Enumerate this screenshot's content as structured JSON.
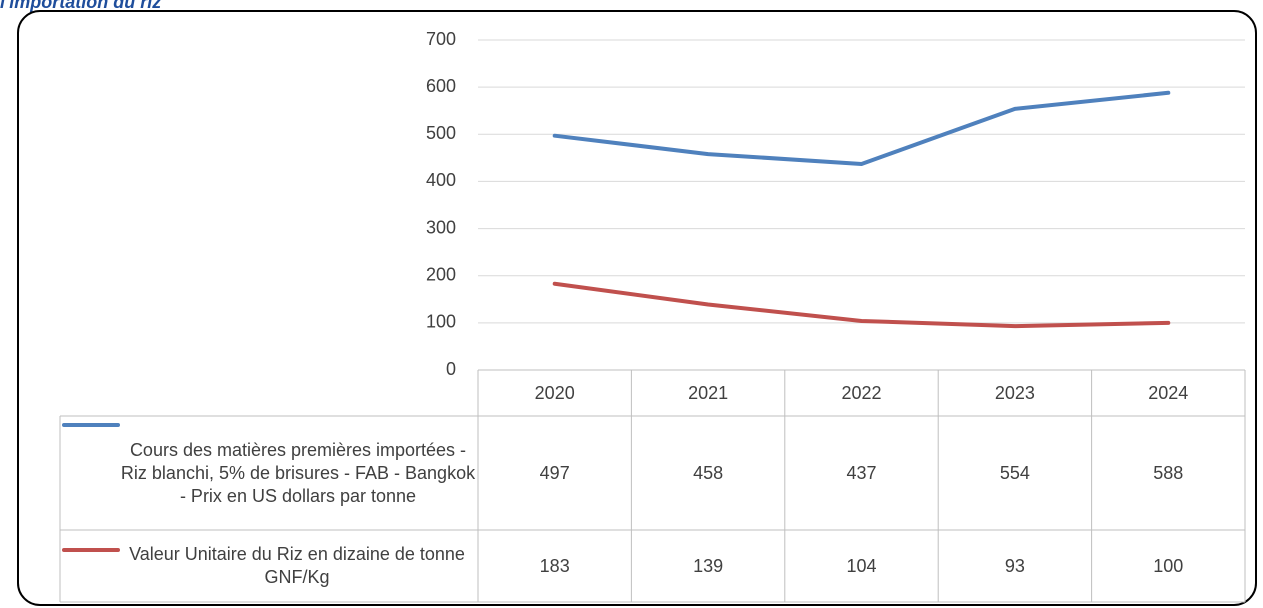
{
  "chart_data": {
    "type": "line",
    "title": "l'importation du riz",
    "categories": [
      "2020",
      "2021",
      "2022",
      "2023",
      "2024"
    ],
    "series": [
      {
        "name": "Cours des matières premières importées - Riz blanchi, 5% de brisures - FAB - Bangkok - Prix en US dollars par tonne",
        "color": "#4f81bd",
        "values": [
          497,
          458,
          437,
          554,
          588
        ]
      },
      {
        "name": "Valeur Unitaire du Riz en dizaine de tonne GNF/Kg",
        "color": "#c0504d",
        "values": [
          183,
          139,
          104,
          93,
          100
        ]
      }
    ],
    "ylim": [
      0,
      700
    ],
    "yticks": [
      0,
      100,
      200,
      300,
      400,
      500,
      600,
      700
    ],
    "grid": true
  }
}
